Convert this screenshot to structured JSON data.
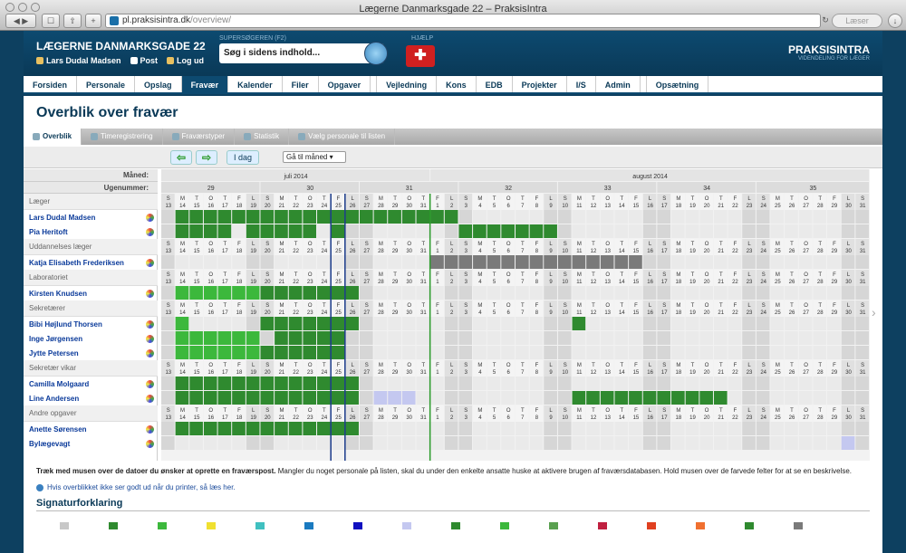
{
  "browser": {
    "title": "Lægerne Danmarksgade 22 – PraksisIntra",
    "url_domain": "pl.praksisintra.dk",
    "url_path": "/overview/",
    "reader_label": "Læser"
  },
  "header": {
    "clinic": "LÆGERNE DANMARKSGADE 22",
    "user": "Lars Dudal Madsen",
    "post": "Post",
    "logout": "Log ud",
    "search_label": "SUPERSØGEREN (F2)",
    "search_placeholder": "Søg i sidens indhold...",
    "help_label": "HJÆLP",
    "brand": "PRAKSISINTRA",
    "brand_sub": "VIDENDELING FOR LÆGER"
  },
  "nav": [
    "Forsiden",
    "Personale",
    "Opslag",
    "Fravær",
    "Kalender",
    "Filer",
    "Opgaver",
    "Vejledning",
    "Kons",
    "EDB",
    "Projekter",
    "I/S",
    "Admin",
    "Opsætning"
  ],
  "nav_active": "Fravær",
  "page_title": "Overblik over fravær",
  "subtabs": [
    "Overblik",
    "Timeregistrering",
    "Fraværstyper",
    "Statistik",
    "Vælg personale til listen"
  ],
  "controls": {
    "today": "I dag",
    "goto": "Gå til måned"
  },
  "calendar": {
    "month_label": "Måned:",
    "week_label": "Ugenummer:",
    "months": [
      {
        "name": "juli 2014",
        "start": 0,
        "span": 19
      },
      {
        "name": "august 2014",
        "start": 19,
        "span": 31
      }
    ],
    "weeks": [
      {
        "n": "29",
        "start": 0,
        "span": 7
      },
      {
        "n": "30",
        "start": 7,
        "span": 7
      },
      {
        "n": "31",
        "start": 14,
        "span": 7
      },
      {
        "n": "32",
        "start": 21,
        "span": 7
      },
      {
        "n": "33",
        "start": 28,
        "span": 7
      },
      {
        "n": "34",
        "start": 35,
        "span": 7
      },
      {
        "n": "35",
        "start": 42,
        "span": 8
      }
    ],
    "day_letters": [
      "S",
      "M",
      "T",
      "O",
      "T",
      "F",
      "L",
      "S",
      "M",
      "T",
      "O",
      "T",
      "F",
      "L",
      "S",
      "M",
      "T",
      "O",
      "T",
      "F",
      "L",
      "S",
      "M",
      "T",
      "O",
      "T",
      "F",
      "L",
      "S",
      "M",
      "T",
      "O",
      "T",
      "F",
      "L",
      "S",
      "M",
      "T",
      "O",
      "T",
      "F",
      "L",
      "S",
      "M",
      "T",
      "O",
      "T",
      "F",
      "L",
      "S"
    ],
    "day_numbers": [
      "13",
      "14",
      "15",
      "16",
      "17",
      "18",
      "19",
      "20",
      "21",
      "22",
      "23",
      "24",
      "25",
      "26",
      "27",
      "28",
      "29",
      "30",
      "31",
      "1",
      "2",
      "3",
      "4",
      "5",
      "6",
      "7",
      "8",
      "9",
      "10",
      "11",
      "12",
      "13",
      "14",
      "15",
      "16",
      "17",
      "18",
      "19",
      "20",
      "21",
      "22",
      "23",
      "24",
      "25",
      "26",
      "27",
      "28",
      "29",
      "30",
      "31"
    ],
    "weekend_idx": [
      0,
      6,
      7,
      13,
      14,
      20,
      21,
      27,
      28,
      34,
      35,
      41,
      42,
      48,
      49
    ],
    "today_idx": 12,
    "marker_idx": 19,
    "groups": [
      {
        "name": "Læger",
        "people": [
          {
            "name": "Lars Dudal Madsen",
            "blocks": [
              {
                "from": 1,
                "to": 20,
                "color": "dark"
              }
            ]
          },
          {
            "name": "Pia Heritoft",
            "blocks": [
              {
                "from": 1,
                "to": 4,
                "color": "dark"
              },
              {
                "from": 6,
                "to": 10,
                "color": "dark"
              },
              {
                "from": 12,
                "to": 12,
                "color": "dark"
              },
              {
                "from": 21,
                "to": 27,
                "color": "dark"
              }
            ]
          }
        ]
      },
      {
        "name": "Uddannelses læger",
        "people": [
          {
            "name": "Katja Elisabeth Frederiksen",
            "blocks": [
              {
                "from": 19,
                "to": 33,
                "color": "grey"
              }
            ]
          }
        ]
      },
      {
        "name": "Laboratoriet",
        "people": [
          {
            "name": "Kirsten Knudsen",
            "blocks": [
              {
                "from": 1,
                "to": 6,
                "color": "light"
              },
              {
                "from": 7,
                "to": 13,
                "color": "dark"
              }
            ]
          }
        ]
      },
      {
        "name": "Sekretærer",
        "people": [
          {
            "name": "Bibi Højlund Thorsen",
            "blocks": [
              {
                "from": 1,
                "to": 1,
                "color": "light"
              },
              {
                "from": 7,
                "to": 13,
                "color": "dark"
              },
              {
                "from": 29,
                "to": 29,
                "color": "dark"
              }
            ]
          },
          {
            "name": "Inge Jørgensen",
            "blocks": [
              {
                "from": 1,
                "to": 6,
                "color": "light"
              },
              {
                "from": 8,
                "to": 12,
                "color": "dark"
              }
            ]
          },
          {
            "name": "Jytte Petersen",
            "blocks": [
              {
                "from": 1,
                "to": 6,
                "color": "light"
              },
              {
                "from": 7,
                "to": 12,
                "color": "dark"
              }
            ]
          }
        ]
      },
      {
        "name": "Sekretær vikar",
        "people": [
          {
            "name": "Camilla Molgaard",
            "blocks": [
              {
                "from": 1,
                "to": 13,
                "color": "dark"
              }
            ]
          },
          {
            "name": "Line Andersen",
            "blocks": [
              {
                "from": 1,
                "to": 13,
                "color": "dark"
              },
              {
                "from": 15,
                "to": 17,
                "color": "lilac"
              },
              {
                "from": 29,
                "to": 39,
                "color": "dark"
              }
            ]
          }
        ]
      },
      {
        "name": "Andre opgaver",
        "people": [
          {
            "name": "Anette Sørensen",
            "blocks": [
              {
                "from": 1,
                "to": 13,
                "color": "dark"
              }
            ]
          },
          {
            "name": "Bylægevagt",
            "blocks": [
              {
                "from": 48,
                "to": 48,
                "color": "lilac"
              }
            ]
          }
        ]
      }
    ],
    "colors": {
      "dark": "#2f8a2f",
      "light": "#3cb83c",
      "grey": "#7a7a7a",
      "lilac": "#c4c8f0",
      "weekend": "#d6d6d6",
      "weekday": "#eaeaea",
      "vline": "#1a3a8a",
      "green_line": "#2a9a2a"
    }
  },
  "footer": {
    "instruction_bold": "Træk med musen over de datoer du ønsker at oprette en fraværspost.",
    "instruction": " Mangler du noget personale på listen, skal du under den enkelte ansatte huske at aktivere brugen af fraværsdatabasen. Hold musen over de farvede felter for at se en beskrivelse.",
    "print_link": "Hvis overblikket ikke ser godt ud når du printer, så læs her.",
    "legend_title": "Signaturforklaring",
    "legend_colors": [
      "#c8c8c8",
      "#2f8a2f",
      "#3cb83c",
      "#f0e030",
      "#40c0c0",
      "#1a7ac0",
      "#1010c0",
      "#c4c8f0",
      "#2f8a2f",
      "#3cb83c",
      "#5aa050",
      "#c02040",
      "#e04020",
      "#f07030",
      "#2f8a2f",
      "#7a7a7a"
    ]
  }
}
